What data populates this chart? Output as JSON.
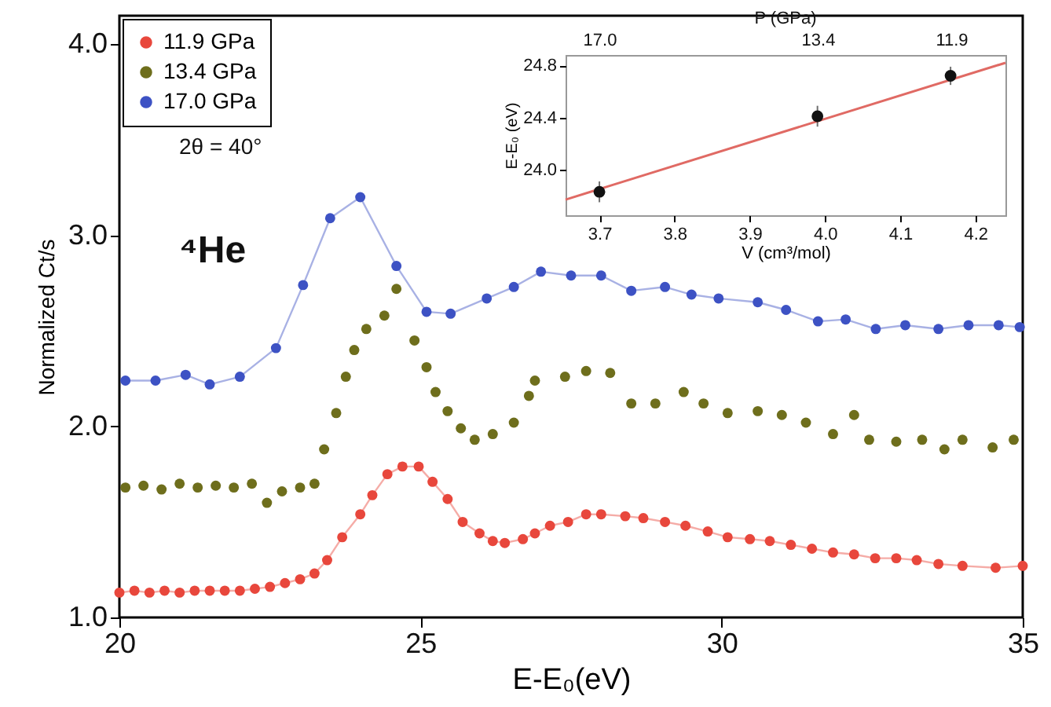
{
  "chart_data": [
    {
      "type": "line",
      "xlabel": "E-E₀(eV)",
      "ylabel": "Normalized Ct/s",
      "xlim": [
        20,
        35
      ],
      "ylim": [
        1,
        4.15
      ],
      "xticks": [
        20,
        25,
        30,
        35
      ],
      "yticks": [
        {
          "value": 1,
          "label": "1.0"
        },
        {
          "value": 2,
          "label": "2.0"
        },
        {
          "value": 3,
          "label": "3.0"
        },
        {
          "value": 4,
          "label": "4.0"
        }
      ],
      "grid": false,
      "legend": "top left",
      "marker": "circle",
      "annotations": [
        "2θ = 40°",
        "⁴He"
      ],
      "series": [
        {
          "name": "11.9 GPa",
          "color": "#e8473c",
          "x": [
            20.0,
            20.25,
            20.5,
            20.75,
            21.0,
            21.25,
            21.5,
            21.75,
            22.0,
            22.25,
            22.5,
            22.75,
            23.0,
            23.24,
            23.45,
            23.7,
            24.0,
            24.2,
            24.45,
            24.7,
            24.97,
            25.2,
            25.45,
            25.7,
            25.98,
            26.2,
            26.4,
            26.7,
            26.9,
            27.15,
            27.45,
            27.75,
            28.0,
            28.4,
            28.7,
            29.06,
            29.4,
            29.77,
            30.1,
            30.47,
            30.8,
            31.15,
            31.5,
            31.85,
            32.2,
            32.55,
            32.9,
            33.24,
            33.6,
            34.0,
            34.55,
            35.0
          ],
          "values": [
            1.13,
            1.14,
            1.13,
            1.14,
            1.13,
            1.14,
            1.14,
            1.14,
            1.14,
            1.15,
            1.16,
            1.18,
            1.2,
            1.23,
            1.3,
            1.42,
            1.54,
            1.64,
            1.75,
            1.79,
            1.79,
            1.71,
            1.62,
            1.5,
            1.44,
            1.4,
            1.39,
            1.41,
            1.44,
            1.48,
            1.5,
            1.54,
            1.54,
            1.53,
            1.52,
            1.5,
            1.48,
            1.45,
            1.42,
            1.41,
            1.4,
            1.38,
            1.36,
            1.34,
            1.33,
            1.31,
            1.31,
            1.3,
            1.28,
            1.27,
            1.26,
            1.27
          ]
        },
        {
          "name": "13.4 GPa",
          "type": "scatter",
          "color": "#6e6e1c",
          "x": [
            20.1,
            20.4,
            20.7,
            21.0,
            21.3,
            21.6,
            21.9,
            22.2,
            22.45,
            22.7,
            23.0,
            23.24,
            23.4,
            23.6,
            23.76,
            23.9,
            24.1,
            24.4,
            24.6,
            24.9,
            25.1,
            25.25,
            25.45,
            25.67,
            25.9,
            26.2,
            26.55,
            26.8,
            26.9,
            27.4,
            27.75,
            28.15,
            28.5,
            28.9,
            29.37,
            29.7,
            30.1,
            30.6,
            31.0,
            31.4,
            31.85,
            32.2,
            32.45,
            32.9,
            33.33,
            33.7,
            34.0,
            34.5,
            34.85
          ],
          "values": [
            1.68,
            1.69,
            1.67,
            1.7,
            1.68,
            1.69,
            1.68,
            1.7,
            1.6,
            1.66,
            1.68,
            1.7,
            1.88,
            2.07,
            2.26,
            2.4,
            2.51,
            2.58,
            2.72,
            2.45,
            2.31,
            2.18,
            2.08,
            1.99,
            1.93,
            1.96,
            2.02,
            2.16,
            2.24,
            2.26,
            2.29,
            2.28,
            2.12,
            2.12,
            2.18,
            2.12,
            2.07,
            2.08,
            2.06,
            2.02,
            1.96,
            2.06,
            1.93,
            1.92,
            1.93,
            1.88,
            1.93,
            1.89,
            1.93
          ]
        },
        {
          "name": "17.0 GPa",
          "color": "#3d52c4",
          "x": [
            20.1,
            20.6,
            21.1,
            21.5,
            22.0,
            22.6,
            23.05,
            23.5,
            24.0,
            24.6,
            25.1,
            25.5,
            26.1,
            26.55,
            27.0,
            27.5,
            28.0,
            28.5,
            29.06,
            29.5,
            29.95,
            30.6,
            31.07,
            31.6,
            32.06,
            32.56,
            33.05,
            33.6,
            34.1,
            34.6,
            34.95
          ],
          "values": [
            2.24,
            2.24,
            2.27,
            2.22,
            2.26,
            2.41,
            2.74,
            3.09,
            3.2,
            2.84,
            2.6,
            2.59,
            2.67,
            2.73,
            2.81,
            2.79,
            2.79,
            2.71,
            2.73,
            2.69,
            2.67,
            2.65,
            2.61,
            2.55,
            2.56,
            2.51,
            2.53,
            2.51,
            2.53,
            2.53,
            2.52
          ]
        }
      ]
    },
    {
      "type": "scatter",
      "xlabel": "V (cm³/mol)",
      "ylabel": "E-E₀ (eV)",
      "xlim": [
        3.655,
        4.24
      ],
      "ylim": [
        23.65,
        24.88
      ],
      "xticks": [
        3.7,
        3.8,
        3.9,
        {
          "value": 4,
          "label": "4.0"
        },
        4.1,
        4.2
      ],
      "annotations": [
        "P (GPa)",
        "17.0",
        "13.4",
        "11.9"
      ],
      "yticks": [
        {
          "value": 24,
          "label": "24.0"
        },
        24.4,
        24.8
      ],
      "grid": false,
      "marker": "circle",
      "series": [
        {
          "color": "#111111",
          "x": [
            3.7,
            3.99,
            4.167
          ],
          "values": [
            23.83,
            24.41,
            24.72
          ],
          "errors": [
            0.08,
            0.08,
            0.07
          ]
        },
        {
          "type": "line",
          "marker": "none",
          "color": "#e06a64",
          "x": [
            3.655,
            4.24
          ],
          "values": [
            23.77,
            24.82
          ]
        }
      ]
    }
  ]
}
